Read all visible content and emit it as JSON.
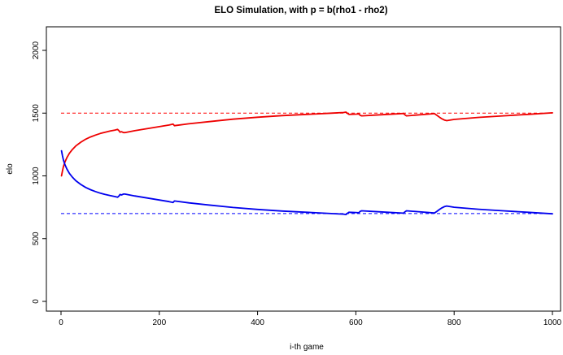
{
  "chart_data": {
    "type": "line",
    "title": "ELO Simulation, with p = b(rho1 - rho2)",
    "xlabel": "i-th game",
    "ylabel": "elo",
    "xlim": [
      0,
      1000
    ],
    "ylim": [
      0,
      2100
    ],
    "x_ticks": [
      0,
      200,
      400,
      600,
      800,
      1000
    ],
    "y_ticks": [
      0,
      500,
      1000,
      1500,
      2000
    ],
    "grid": false,
    "legend": "none",
    "reference_lines": [
      {
        "y": 1500,
        "color": "#ff0000",
        "style": "dashed"
      },
      {
        "y": 700,
        "color": "#0000ff",
        "style": "dashed"
      }
    ],
    "series": [
      {
        "color": "#ee0000",
        "points": [
          [
            1,
            1000
          ],
          [
            3,
            1040
          ],
          [
            5,
            1075
          ],
          [
            8,
            1110
          ],
          [
            12,
            1145
          ],
          [
            17,
            1180
          ],
          [
            23,
            1210
          ],
          [
            30,
            1238
          ],
          [
            40,
            1268
          ],
          [
            50,
            1292
          ],
          [
            60,
            1310
          ],
          [
            70,
            1325
          ],
          [
            80,
            1338
          ],
          [
            90,
            1348
          ],
          [
            100,
            1357
          ],
          [
            110,
            1365
          ],
          [
            115,
            1370
          ],
          [
            118,
            1360
          ],
          [
            120,
            1348
          ],
          [
            123,
            1352
          ],
          [
            127,
            1345
          ],
          [
            130,
            1345
          ],
          [
            150,
            1360
          ],
          [
            175,
            1376
          ],
          [
            200,
            1392
          ],
          [
            220,
            1405
          ],
          [
            228,
            1412
          ],
          [
            231,
            1400
          ],
          [
            260,
            1415
          ],
          [
            300,
            1432
          ],
          [
            350,
            1452
          ],
          [
            400,
            1467
          ],
          [
            450,
            1480
          ],
          [
            500,
            1490
          ],
          [
            550,
            1500
          ],
          [
            575,
            1505
          ],
          [
            580,
            1508
          ],
          [
            583,
            1498
          ],
          [
            586,
            1490
          ],
          [
            600,
            1492
          ],
          [
            606,
            1494
          ],
          [
            609,
            1482
          ],
          [
            612,
            1478
          ],
          [
            650,
            1487
          ],
          [
            697,
            1497
          ],
          [
            700,
            1486
          ],
          [
            703,
            1478
          ],
          [
            760,
            1496
          ],
          [
            765,
            1482
          ],
          [
            770,
            1468
          ],
          [
            775,
            1455
          ],
          [
            780,
            1445
          ],
          [
            785,
            1440
          ],
          [
            800,
            1450
          ],
          [
            850,
            1466
          ],
          [
            900,
            1478
          ],
          [
            950,
            1490
          ],
          [
            1000,
            1502
          ]
        ]
      },
      {
        "color": "#0000ee",
        "points": [
          [
            1,
            1200
          ],
          [
            3,
            1160
          ],
          [
            5,
            1125
          ],
          [
            8,
            1090
          ],
          [
            12,
            1055
          ],
          [
            17,
            1020
          ],
          [
            23,
            990
          ],
          [
            30,
            962
          ],
          [
            40,
            932
          ],
          [
            50,
            908
          ],
          [
            60,
            890
          ],
          [
            70,
            875
          ],
          [
            80,
            862
          ],
          [
            90,
            852
          ],
          [
            100,
            843
          ],
          [
            110,
            835
          ],
          [
            115,
            830
          ],
          [
            118,
            840
          ],
          [
            120,
            852
          ],
          [
            123,
            848
          ],
          [
            127,
            855
          ],
          [
            130,
            855
          ],
          [
            150,
            840
          ],
          [
            175,
            824
          ],
          [
            200,
            808
          ],
          [
            220,
            795
          ],
          [
            228,
            788
          ],
          [
            231,
            800
          ],
          [
            260,
            785
          ],
          [
            300,
            768
          ],
          [
            350,
            748
          ],
          [
            400,
            733
          ],
          [
            450,
            720
          ],
          [
            500,
            710
          ],
          [
            550,
            700
          ],
          [
            575,
            695
          ],
          [
            580,
            692
          ],
          [
            583,
            702
          ],
          [
            586,
            710
          ],
          [
            600,
            708
          ],
          [
            606,
            706
          ],
          [
            609,
            718
          ],
          [
            612,
            722
          ],
          [
            650,
            713
          ],
          [
            697,
            703
          ],
          [
            700,
            714
          ],
          [
            703,
            722
          ],
          [
            760,
            704
          ],
          [
            765,
            718
          ],
          [
            770,
            732
          ],
          [
            775,
            745
          ],
          [
            780,
            755
          ],
          [
            785,
            760
          ],
          [
            800,
            750
          ],
          [
            850,
            734
          ],
          [
            900,
            722
          ],
          [
            950,
            710
          ],
          [
            1000,
            698
          ]
        ]
      }
    ]
  }
}
